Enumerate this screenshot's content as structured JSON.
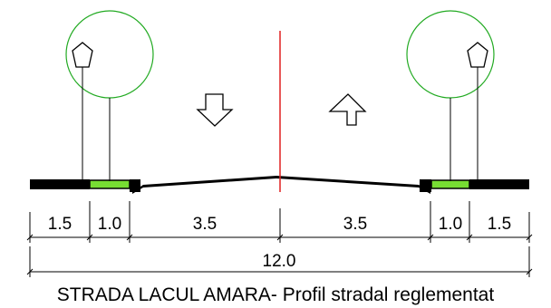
{
  "diagram": {
    "caption": "STRADA LACUL AMARA- Profil stradal reglementat",
    "segments": [
      {
        "label": "1.5"
      },
      {
        "label": "1.0"
      },
      {
        "label": "3.5"
      },
      {
        "label": "3.5"
      },
      {
        "label": "1.0"
      },
      {
        "label": "1.5"
      }
    ],
    "total_width": {
      "label": "12.0"
    },
    "colors": {
      "lines": "#000000",
      "centerline": "#e02020",
      "tree_canopy": "#22aa22",
      "green_strip": "#77dd33"
    },
    "icons": {
      "left_tree": "tree-icon",
      "right_tree": "tree-icon",
      "left_lamp": "street-lamp-icon",
      "right_lamp": "street-lamp-icon",
      "down_arrow": "arrow-down-icon",
      "up_arrow": "arrow-up-icon"
    }
  }
}
